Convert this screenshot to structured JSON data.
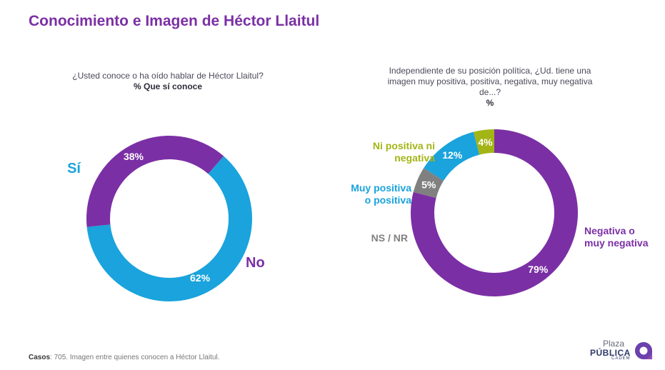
{
  "title": "Conocimiento e Imagen de Héctor Llaitul",
  "chart_data": [
    {
      "type": "pie",
      "question": "¿Usted conoce o ha oído hablar de Héctor Llaitul?",
      "subquestion": "% Que sí conoce",
      "categories": [
        "Sí",
        "No"
      ],
      "values": [
        62,
        38
      ],
      "colors": [
        "#1aa3dc",
        "#7b2fa5"
      ],
      "labels": [
        "62%",
        "38%"
      ]
    },
    {
      "type": "pie",
      "question": "Independiente de su posición política, ¿Ud. tiene una imagen muy positiva, positiva, negativa, muy negativa de...?",
      "subquestion": "%",
      "categories": [
        "Negativa o muy negativa",
        "NS / NR",
        "Muy positiva o positiva",
        "Ni positiva ni negativa"
      ],
      "values": [
        79,
        5,
        12,
        4
      ],
      "colors": [
        "#7b2fa5",
        "#808080",
        "#1aa3dc",
        "#a3b515"
      ],
      "labels": [
        "79%",
        "5%",
        "12%",
        "4%"
      ]
    }
  ],
  "footer": {
    "bold": "Casos",
    "text": ": 705. Imagen entre quienes conocen a Héctor Llaitul."
  },
  "logo": {
    "line1": "Plaza",
    "line2": "PÚBLICA",
    "line3": "CADEM"
  }
}
